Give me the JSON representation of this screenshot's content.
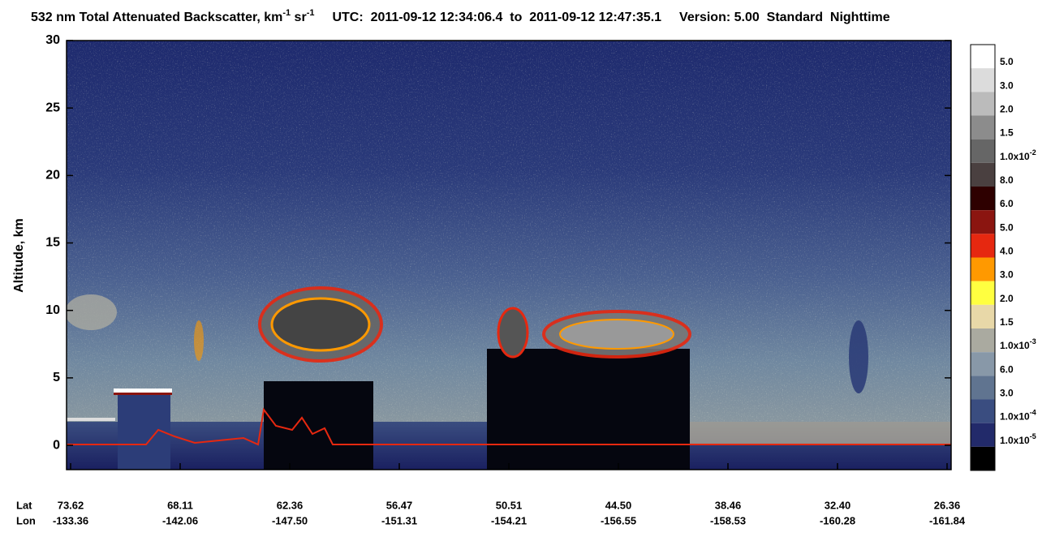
{
  "chart_data": {
    "type": "heatmap",
    "title_main": "532 nm Total Attenuated Backscatter, km",
    "title_exp1": "-1",
    "title_unit2": " sr",
    "title_exp2": "-1",
    "title_utc": "UTC:  2011-09-12 12:34:06.4  to  2011-09-12 12:47:35.1",
    "title_version": "Version: 5.00  Standard  Nighttime",
    "y_label": "Altitude, km",
    "ylim": [
      -1.8,
      30
    ],
    "yticks": [
      0,
      5,
      10,
      15,
      20,
      25,
      30
    ],
    "lat_title": "Lat",
    "lon_title": "Lon",
    "lat_labels": [
      "73.62",
      "68.11",
      "62.36",
      "56.47",
      "50.51",
      "44.50",
      "38.46",
      "32.40",
      "26.36"
    ],
    "lon_labels": [
      "-133.36",
      "-142.06",
      "-147.50",
      "-151.31",
      "-154.21",
      "-156.55",
      "-158.53",
      "-160.28",
      "-161.84"
    ],
    "colorbar_colors": [
      "#ffffff",
      "#dcdcdc",
      "#bbbbbb",
      "#8c8c8c",
      "#666666",
      "#4a4040",
      "#2e0000",
      "#8b1510",
      "#e62810",
      "#ff9900",
      "#ffff40",
      "#e8d8a8",
      "#aaaaa0",
      "#8898a8",
      "#607490",
      "#3a4d80",
      "#222a6a",
      "#000000"
    ],
    "colorbar_labels": [
      {
        "mantissa": "5.0"
      },
      {
        "mantissa": "3.0"
      },
      {
        "mantissa": "2.0"
      },
      {
        "mantissa": "1.5"
      },
      {
        "mantissa": "1.0x10",
        "exponent": "-2"
      },
      {
        "mantissa": "8.0"
      },
      {
        "mantissa": "6.0"
      },
      {
        "mantissa": "5.0"
      },
      {
        "mantissa": "4.0"
      },
      {
        "mantissa": "3.0"
      },
      {
        "mantissa": "2.0"
      },
      {
        "mantissa": "1.5"
      },
      {
        "mantissa": "1.0x10",
        "exponent": "-3"
      },
      {
        "mantissa": "6.0"
      },
      {
        "mantissa": "3.0"
      },
      {
        "mantissa": "1.0x10",
        "exponent": "-4"
      },
      {
        "mantissa": "1.0x10",
        "exponent": "-5"
      }
    ]
  }
}
